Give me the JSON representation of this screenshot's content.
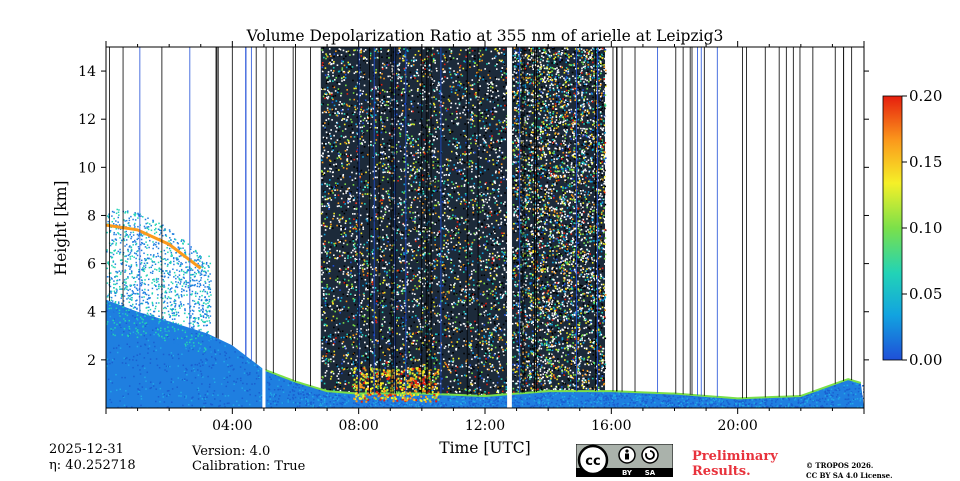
{
  "chart_data": {
    "type": "heatmap",
    "title": "Volume Depolarization Ratio at 355 nm of arielle at Leipzig3",
    "xlabel": "Time [UTC]",
    "ylabel": "Height [km]",
    "xlim_hours": [
      0,
      24
    ],
    "ylim_km": [
      0,
      15
    ],
    "x_ticks": [
      {
        "hour": 4,
        "label": "04:00"
      },
      {
        "hour": 8,
        "label": "08:00"
      },
      {
        "hour": 12,
        "label": "12:00"
      },
      {
        "hour": 16,
        "label": "16:00"
      },
      {
        "hour": 20,
        "label": "20:00"
      }
    ],
    "y_ticks": [
      {
        "km": 2,
        "label": "2"
      },
      {
        "km": 4,
        "label": "4"
      },
      {
        "km": 6,
        "label": "6"
      },
      {
        "km": 8,
        "label": "8"
      },
      {
        "km": 10,
        "label": "10"
      },
      {
        "km": 12,
        "label": "12"
      },
      {
        "km": 14,
        "label": "14"
      }
    ],
    "colorbar": {
      "vmin": 0.0,
      "vmax": 0.2,
      "ticks": [
        {
          "value": 0.0,
          "label": "0.00"
        },
        {
          "value": 0.05,
          "label": "0.05"
        },
        {
          "value": 0.1,
          "label": "0.10"
        },
        {
          "value": 0.15,
          "label": "0.15"
        },
        {
          "value": 0.2,
          "label": "0.20"
        }
      ],
      "colors": [
        "#1f4fd8",
        "#12a3e0",
        "#22d3b6",
        "#7be04a",
        "#f5f028",
        "#fb9a1c",
        "#e61e0e"
      ]
    },
    "noise_periods_hours": [
      [
        6.8,
        12.7
      ],
      [
        12.85,
        15.8
      ]
    ],
    "gap_periods_hours": [
      [
        4.95,
        5.05
      ],
      [
        12.7,
        12.85
      ]
    ],
    "boundary_layer_top_km": [
      [
        0.0,
        4.5
      ],
      [
        1.0,
        4.0
      ],
      [
        2.0,
        3.6
      ],
      [
        3.2,
        3.1
      ],
      [
        4.0,
        2.6
      ],
      [
        5.0,
        1.6
      ],
      [
        6.0,
        1.1
      ],
      [
        7.0,
        0.7
      ],
      [
        8.0,
        0.6
      ],
      [
        10.0,
        0.6
      ],
      [
        12.0,
        0.5
      ],
      [
        14.0,
        0.7
      ],
      [
        16.0,
        0.7
      ],
      [
        18.0,
        0.6
      ],
      [
        20.0,
        0.4
      ],
      [
        22.0,
        0.5
      ],
      [
        23.5,
        1.2
      ],
      [
        24.0,
        1.0
      ]
    ],
    "aerosol_layer_km": [
      [
        0.0,
        7.6
      ],
      [
        1.0,
        7.4
      ],
      [
        2.0,
        6.8
      ],
      [
        3.0,
        5.8
      ]
    ],
    "low_cloud_period_hours": [
      7.8,
      10.5
    ]
  },
  "footer": {
    "date": "2025-12-31",
    "eta": "η: 40.252718",
    "version": "Version: 4.0",
    "calibration": "Calibration: True",
    "preliminary_line1": "Preliminary",
    "preliminary_line2": "Results.",
    "copyright_line1": "© TROPOS 2026.",
    "copyright_line2": "CC BY SA 4.0 License.",
    "license_badge": {
      "icon": "cc-by-sa-badge",
      "text_by": "BY",
      "text_sa": "SA",
      "text_cc": "cc"
    }
  }
}
